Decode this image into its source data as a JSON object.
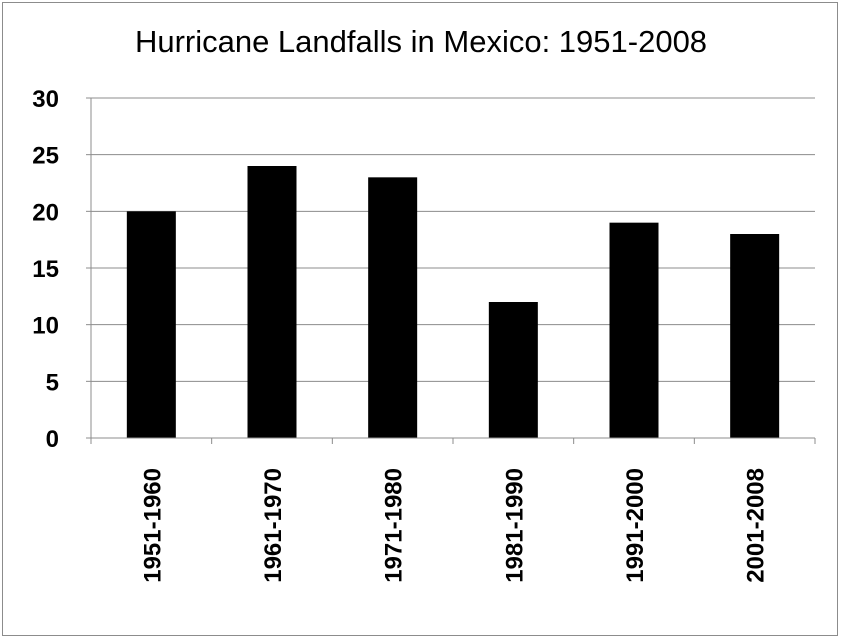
{
  "chart_data": {
    "type": "bar",
    "title": "Hurricane Landfalls in Mexico: 1951-2008",
    "xlabel": "",
    "ylabel": "",
    "categories": [
      "1951-1960",
      "1961-1970",
      "1971-1980",
      "1981-1990",
      "1991-2000",
      "2001-2008"
    ],
    "values": [
      20,
      24,
      23,
      12,
      19,
      18
    ],
    "ylim": [
      0,
      30
    ],
    "yticks": [
      "0",
      "5",
      "10",
      "15",
      "20",
      "25",
      "30"
    ],
    "grid": "horizontal",
    "legend": "none",
    "bar_color": "#000000",
    "grid_color": "#8c8c8c"
  }
}
